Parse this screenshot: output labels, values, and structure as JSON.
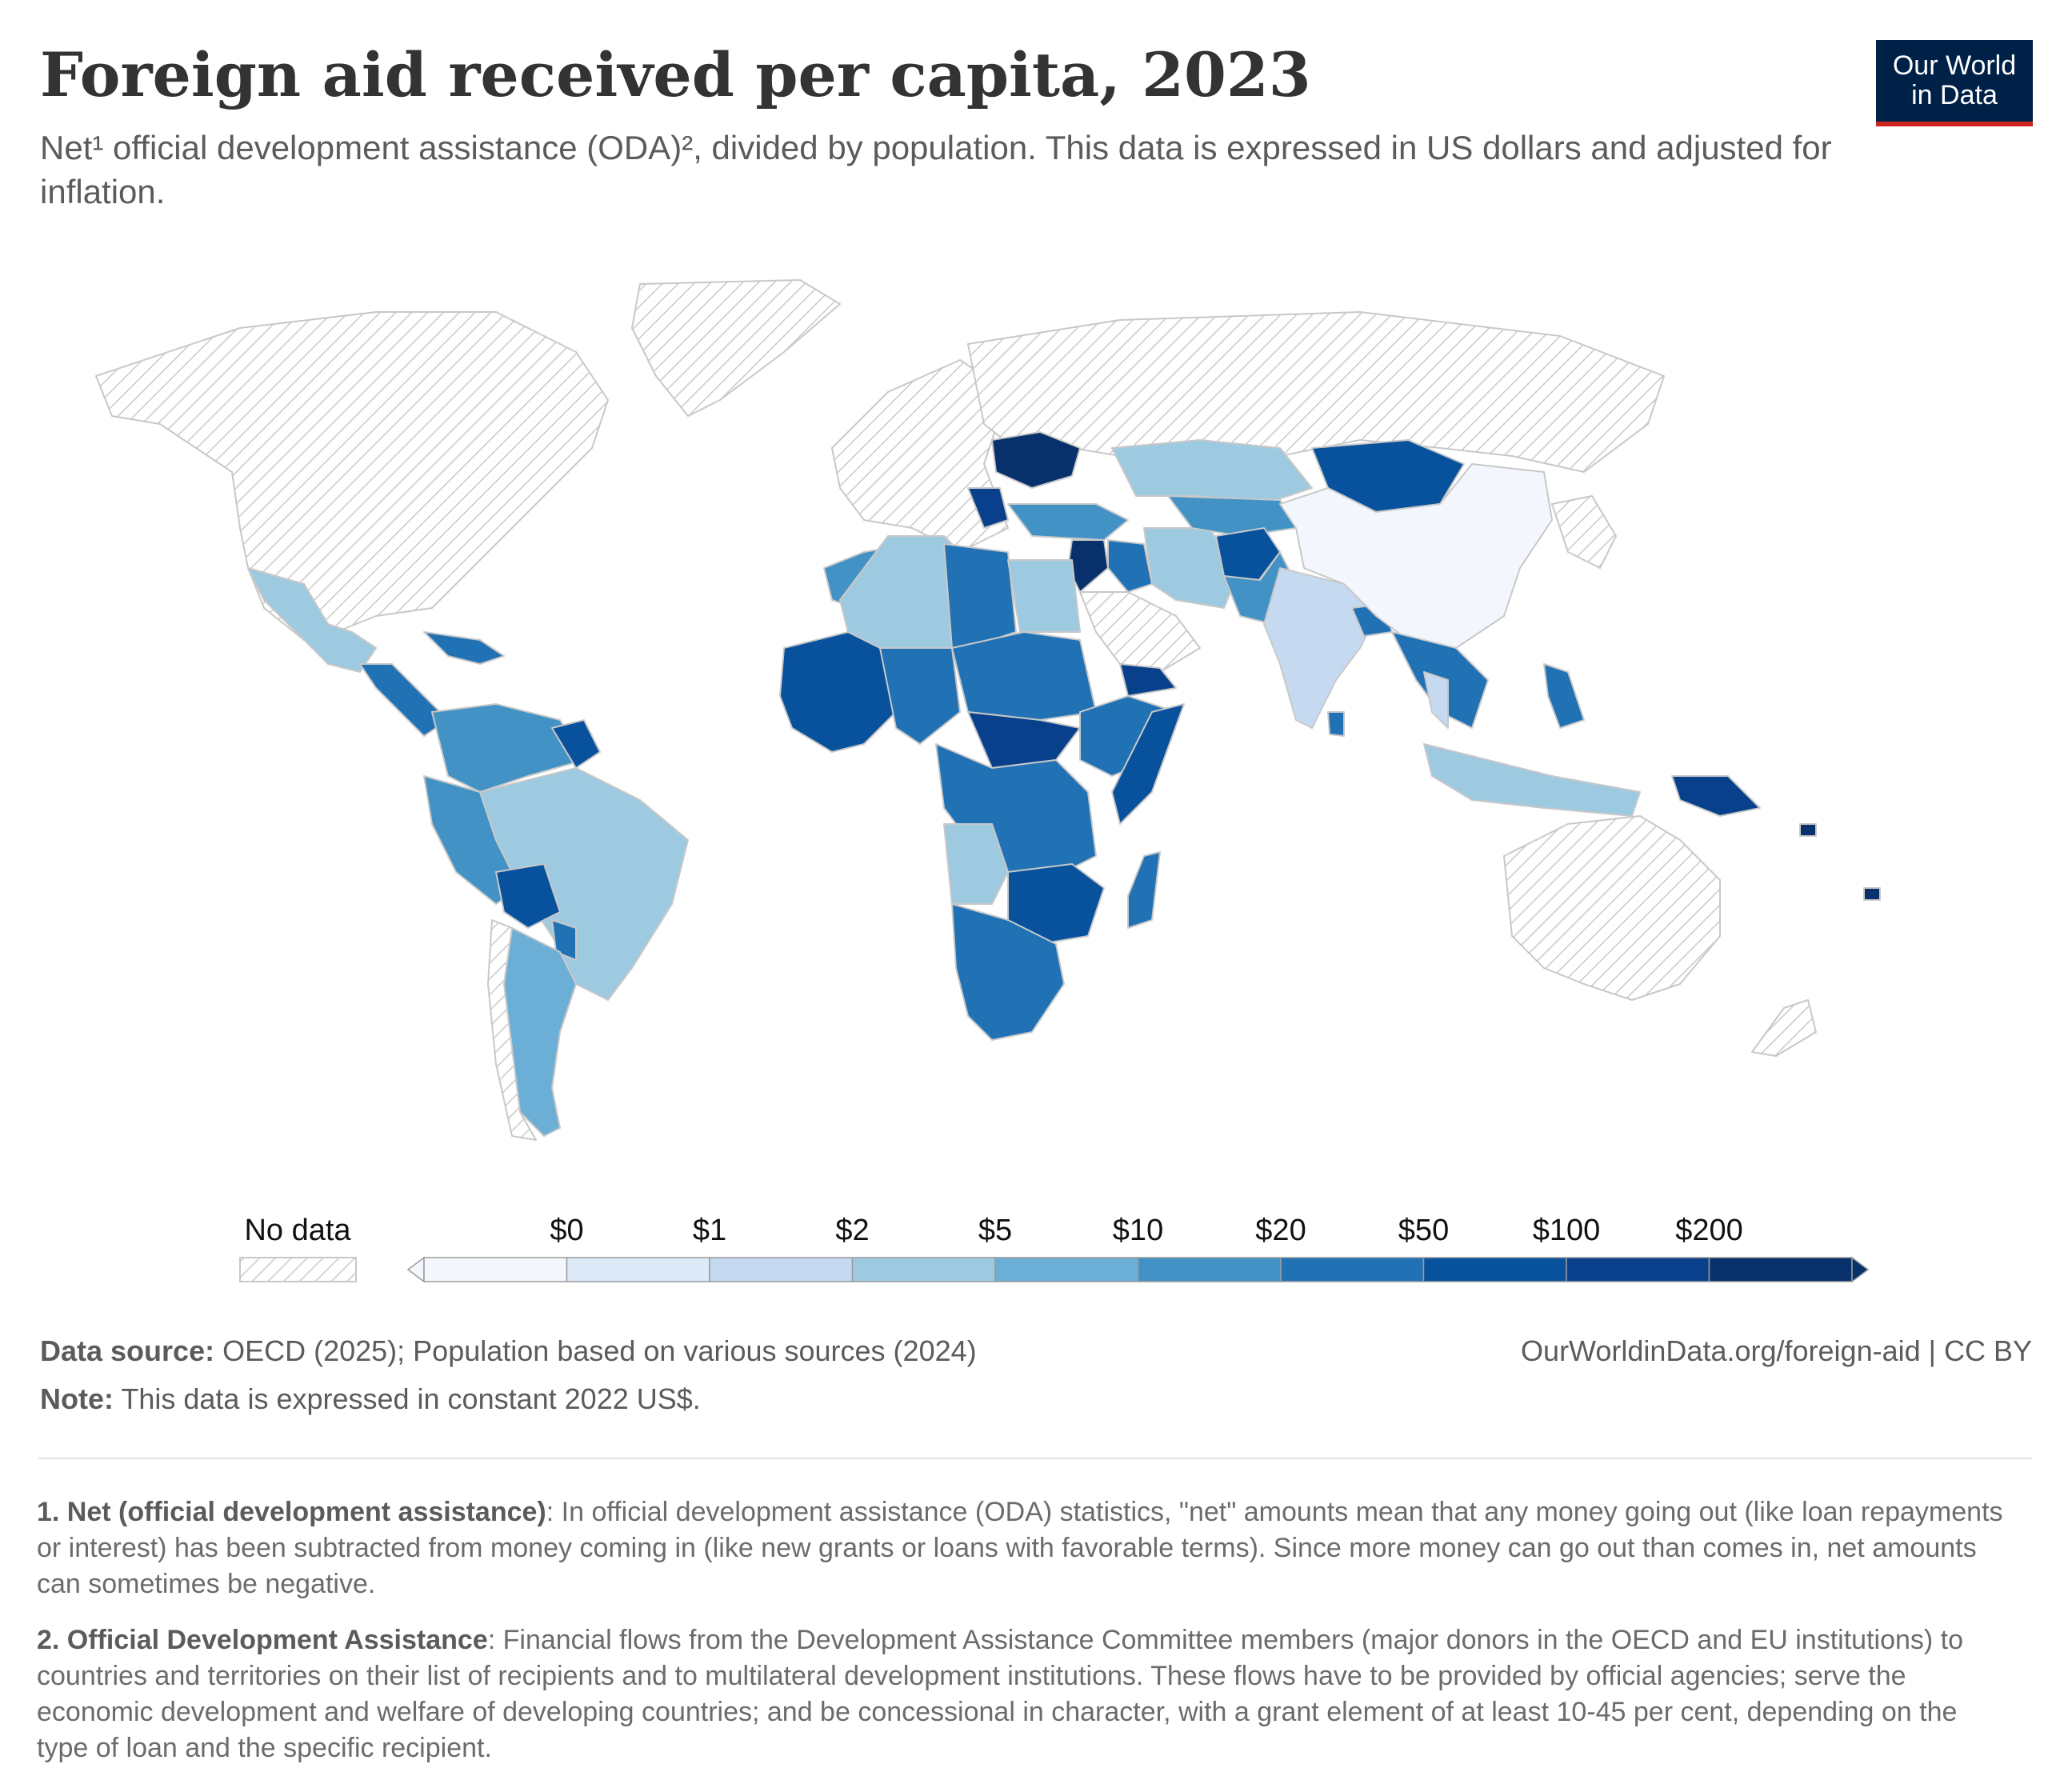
{
  "header": {
    "title": "Foreign aid received per capita, 2023",
    "subtitle": "Net¹ official development assistance (ODA)², divided by population. This data is expressed in US dollars and adjusted for inflation.",
    "logo_line1": "Our World",
    "logo_line2": "in Data"
  },
  "legend": {
    "no_data_label": "No data",
    "ticks": [
      "$0",
      "$1",
      "$2",
      "$5",
      "$10",
      "$20",
      "$50",
      "$100",
      "$200"
    ],
    "colors": [
      "#f3f7fd",
      "#dceaf7",
      "#c5daf0",
      "#9ecae1",
      "#6baed6",
      "#4292c6",
      "#2171b5",
      "#08519c",
      "#08408b",
      "#08306b"
    ]
  },
  "map": {
    "no_data_pattern": "diagonal hatch",
    "region_colors": {
      "no_data": "#e6e6e6",
      "china": "#f3f7fd",
      "india": "#c5daf0",
      "brazil": "#9ecae1",
      "argentina": "#6baed6",
      "mongolia": "#08519c",
      "ukraine": "#08306b",
      "africa_mid": "#2171b5",
      "africa_high": "#08519c"
    }
  },
  "footer": {
    "source_label": "Data source:",
    "source_text": "OECD (2025); Population based on various sources (2024)",
    "url_text": "OurWorldinData.org/foreign-aid | CC BY",
    "note_label": "Note:",
    "note_text": "This data is expressed in constant 2022 US$."
  },
  "footnotes": [
    {
      "label": "1. Net (official development assistance)",
      "text": ": In official development assistance (ODA) statistics, \"net\" amounts mean that any money going out (like loan repayments or interest) has been subtracted from money coming in (like new grants or loans with favorable terms). Since more money can go out than comes in, net amounts can sometimes be negative."
    },
    {
      "label": "2. Official Development Assistance",
      "text": ": Financial flows from the Development Assistance Committee members (major donors in the OECD and EU institutions) to countries and territories on their list of recipients and to multilateral development institutions. These flows have to be provided by official agencies; serve the economic development and welfare of developing countries; and be concessional in character, with a grant element of at least 10-45 per cent, depending on the type of loan and the specific recipient."
    }
  ]
}
